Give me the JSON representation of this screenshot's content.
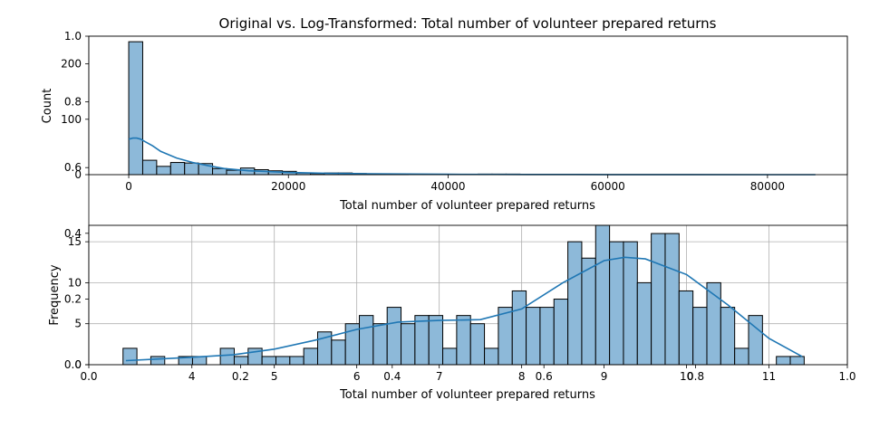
{
  "figure_title": "Original vs. Log-Transformed: Total number of volunteer prepared returns",
  "chart_data": [
    {
      "type": "bar",
      "title": "",
      "xlabel": "Total number of volunteer prepared returns",
      "ylabel": "Count",
      "xlim": [
        -5000,
        90000
      ],
      "ylim": [
        0,
        250
      ],
      "xticks": [
        0,
        20000,
        40000,
        60000,
        80000
      ],
      "yticks": [
        0,
        100,
        200
      ],
      "grid": false,
      "bin_start": 0,
      "bin_width": 1750,
      "counts": [
        240,
        26,
        15,
        22,
        21,
        20,
        11,
        8,
        12,
        9,
        7,
        6,
        3,
        2,
        3,
        3,
        2,
        1,
        1,
        1,
        0,
        0,
        0,
        0,
        0,
        1,
        1,
        1,
        0,
        0,
        0,
        0,
        0,
        0,
        0,
        0,
        0,
        0,
        0,
        0,
        0,
        0,
        0,
        0,
        0,
        0,
        0,
        0,
        0
      ],
      "kde_x": [
        0,
        500,
        1000,
        1500,
        2000,
        3000,
        4000,
        6000,
        8000,
        10000,
        12000,
        15000,
        20000,
        25000,
        30000,
        35000,
        40000,
        50000,
        60000,
        70000,
        80000,
        86000
      ],
      "kde_y": [
        64,
        66,
        66,
        64,
        60,
        52,
        42,
        30,
        22,
        16,
        11,
        7,
        4,
        2.5,
        1.6,
        1.1,
        0.7,
        0.4,
        0.2,
        0.1,
        0.05,
        0.03
      ]
    },
    {
      "type": "bar",
      "title": "",
      "xlabel": "Total number of volunteer prepared returns",
      "ylabel": "Frequency",
      "xlim": [
        2.75,
        11.95
      ],
      "ylim": [
        0,
        17
      ],
      "xticks": [
        4,
        5,
        6,
        7,
        8,
        9,
        10,
        11
      ],
      "yticks": [
        0,
        5,
        10,
        15
      ],
      "grid": true,
      "bin_start": 3.165,
      "bin_width": 0.1686,
      "counts": [
        2,
        0,
        1,
        0,
        1,
        1,
        0,
        2,
        1,
        2,
        1,
        1,
        1,
        2,
        4,
        3,
        5,
        6,
        5,
        7,
        5,
        6,
        6,
        2,
        6,
        5,
        2,
        7,
        9,
        7,
        7,
        8,
        15,
        13,
        17,
        15,
        15,
        10,
        16,
        16,
        9,
        7,
        10,
        7,
        2,
        6,
        0,
        1,
        1
      ],
      "kde_x": [
        3.2,
        3.6,
        4.0,
        4.5,
        5.0,
        5.5,
        6.0,
        6.5,
        7.0,
        7.5,
        8.0,
        8.5,
        9.0,
        9.25,
        9.5,
        10.0,
        10.5,
        11.0,
        11.4
      ],
      "kde_y": [
        0.5,
        0.7,
        0.9,
        1.2,
        1.9,
        3.0,
        4.3,
        5.2,
        5.4,
        5.5,
        6.8,
        10.0,
        12.7,
        13.1,
        12.9,
        11.0,
        7.3,
        3.2,
        1.0
      ]
    }
  ],
  "overlay_axis": {
    "xticks": [
      "0.0",
      "0.2",
      "0.4",
      "0.6",
      "0.8",
      "1.0"
    ],
    "yticks": [
      "0.0",
      "0.2",
      "0.4",
      "0.6",
      "0.8",
      "1.0"
    ]
  }
}
